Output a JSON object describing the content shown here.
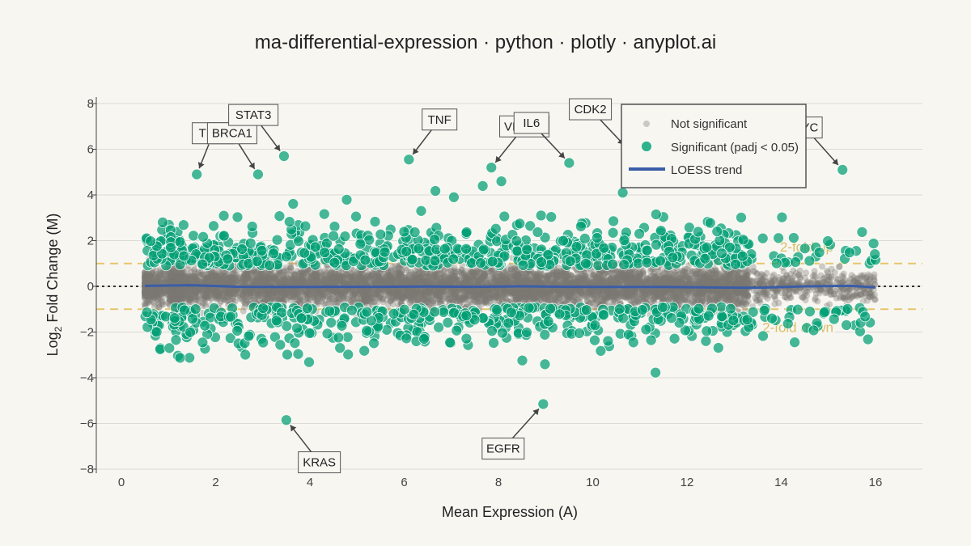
{
  "chart_data": {
    "type": "scatter",
    "title": "ma-differential-expression · python · plotly · anyplot.ai",
    "xlabel": "Mean Expression (A)",
    "ylabel_main": "Log",
    "ylabel_sub": "2",
    "ylabel_rest": " Fold Change (M)",
    "xlim": [
      -0.5,
      17
    ],
    "ylim": [
      -8,
      8.3
    ],
    "xticks": [
      0,
      2,
      4,
      6,
      8,
      10,
      12,
      14,
      16
    ],
    "yticks": [
      8,
      6,
      4,
      2,
      0,
      -2,
      -4,
      -6,
      -8
    ],
    "ytick_labels": [
      "8",
      "6",
      "4",
      "2",
      "0",
      "−2",
      "−4",
      "−6",
      "−8"
    ],
    "grid": true,
    "legend_placement": "top-right",
    "colors": {
      "background": "#f8f6f1",
      "grid": "#dcdad5",
      "not_significant": "#7a7874",
      "significant": "#009e73",
      "loess": "#3a5da8",
      "fold_line": "#e6c66c",
      "zero_line": "#333333"
    },
    "reference_lines": [
      {
        "y": 1,
        "label": "2-fold up"
      },
      {
        "y": -1,
        "label": "2-fold down"
      },
      {
        "y": 0,
        "label": ""
      }
    ],
    "series": [
      {
        "name": "Not significant",
        "x_range": [
          0.5,
          16
        ],
        "m_spread": 0.42,
        "count": 7000
      },
      {
        "name": "Significant (padj < 0.05)",
        "x_range": [
          0.5,
          16
        ],
        "m_abs_range": [
          0.9,
          3.8
        ],
        "count": 1150
      },
      {
        "name": "LOESS trend",
        "x": [
          0.5,
          1.5,
          2.5,
          3.5,
          4.5,
          5.5,
          6.5,
          7.5,
          8.5,
          9.5,
          10.5,
          11.5,
          12.5,
          13.5,
          14.5,
          15.5,
          16
        ],
        "y": [
          0.02,
          0.05,
          -0.02,
          -0.03,
          -0.02,
          -0.02,
          -0.01,
          -0.02,
          0.0,
          -0.02,
          -0.03,
          -0.03,
          -0.05,
          -0.06,
          0.0,
          0.02,
          -0.05
        ]
      }
    ],
    "highlighted_genes": [
      {
        "label": "TP53",
        "x": 1.6,
        "y": 4.9,
        "label_x": 1.95,
        "label_y": 6.7
      },
      {
        "label": "BRCA1",
        "x": 2.9,
        "y": 4.9,
        "label_x": 2.35,
        "label_y": 6.7
      },
      {
        "label": "STAT3",
        "x": 3.45,
        "y": 5.7,
        "label_x": 2.8,
        "label_y": 7.5
      },
      {
        "label": "TNF",
        "x": 6.1,
        "y": 5.55,
        "label_x": 6.75,
        "label_y": 7.3
      },
      {
        "label": "VEGFA",
        "x": 7.85,
        "y": 5.2,
        "label_x": 8.55,
        "label_y": 7.0
      },
      {
        "label": "IL6",
        "x": 9.5,
        "y": 5.4,
        "label_x": 8.7,
        "label_y": 7.15
      },
      {
        "label": "CDK2",
        "x": 10.75,
        "y": 6.0,
        "label_x": 9.95,
        "label_y": 7.75
      },
      {
        "label": "MYC",
        "x": 15.3,
        "y": 5.1,
        "label_x": 14.5,
        "label_y": 6.95
      },
      {
        "label": "KRAS",
        "x": 3.5,
        "y": -5.85,
        "label_x": 4.2,
        "label_y": -7.7
      },
      {
        "label": "EGFR",
        "x": 8.95,
        "y": -5.15,
        "label_x": 8.1,
        "label_y": -7.1
      }
    ]
  }
}
